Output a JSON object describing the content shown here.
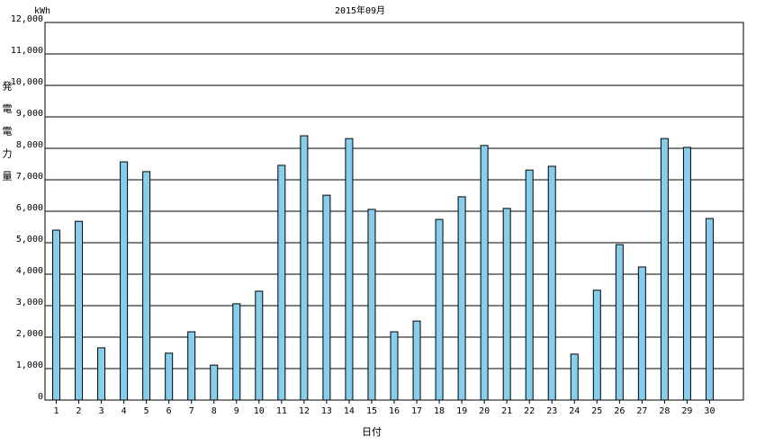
{
  "chart_data": {
    "type": "bar",
    "title": "2015年09月",
    "y_unit": "kWh",
    "y_label": "発電電力量",
    "x_label": "日付",
    "categories": [
      "1",
      "2",
      "3",
      "4",
      "5",
      "6",
      "7",
      "8",
      "9",
      "10",
      "11",
      "12",
      "13",
      "14",
      "15",
      "16",
      "17",
      "18",
      "19",
      "20",
      "21",
      "22",
      "23",
      "24",
      "25",
      "26",
      "27",
      "28",
      "29",
      "30"
    ],
    "values": [
      5400,
      5680,
      1660,
      7570,
      7260,
      1490,
      2170,
      1110,
      3060,
      3460,
      7460,
      8400,
      6510,
      8310,
      6060,
      2170,
      2510,
      5740,
      6460,
      8090,
      6090,
      7310,
      7430,
      1460,
      3490,
      4940,
      4230,
      8310,
      8030,
      5770
    ],
    "color": "#87ceeb",
    "ylim": [
      0,
      12000
    ],
    "yticks": [
      0,
      {
        "value": 1000,
        "label": "1,000"
      },
      {
        "value": 2000,
        "label": "2,000"
      },
      {
        "value": 3000,
        "label": "3,000"
      },
      {
        "value": 4000,
        "label": "4,000"
      },
      {
        "value": 5000,
        "label": "5,000"
      },
      {
        "value": 6000,
        "label": "6,000"
      },
      {
        "value": 7000,
        "label": "7,000"
      },
      {
        "value": 8000,
        "label": "8,000"
      },
      {
        "value": 9000,
        "label": "9,000"
      },
      {
        "value": 10000,
        "label": "10,000"
      },
      {
        "value": 11000,
        "label": "11,000"
      },
      {
        "value": 12000,
        "label": "12,000"
      }
    ],
    "grid": true
  }
}
